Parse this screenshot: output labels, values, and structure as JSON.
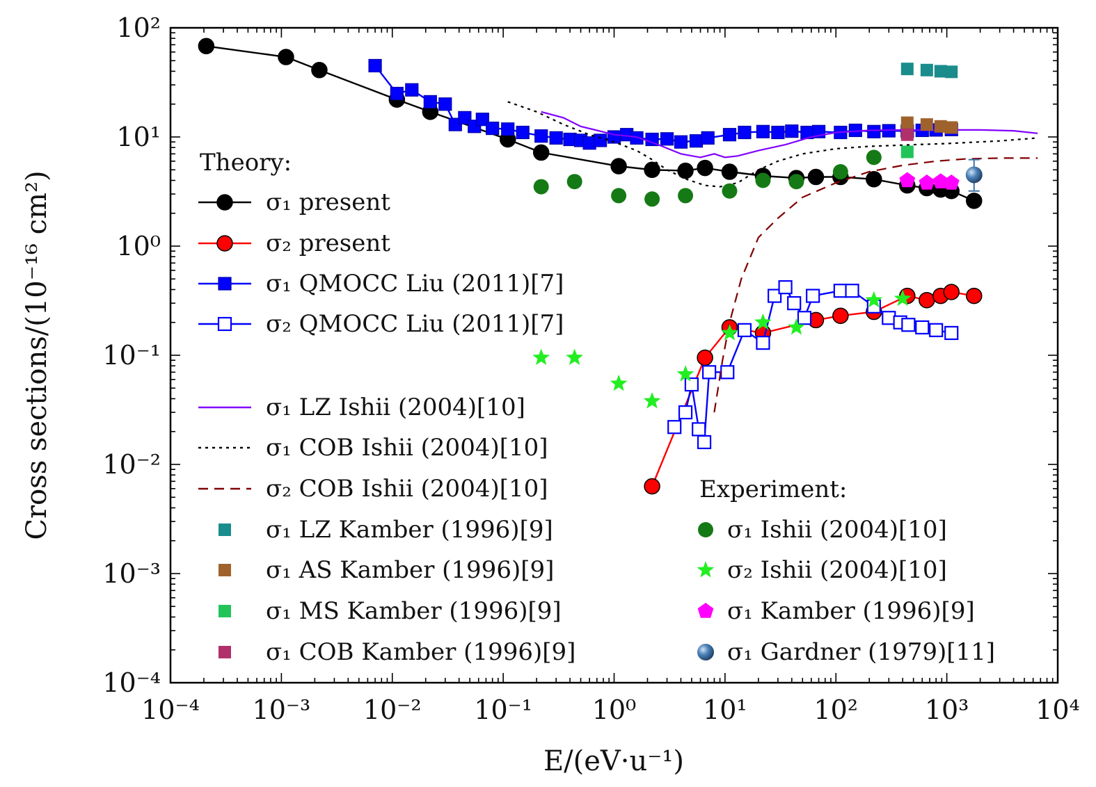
{
  "chart_data": {
    "type": "scatter",
    "xscale": "log",
    "yscale": "log",
    "xlim": [
      0.0001,
      10000
    ],
    "ylim": [
      0.0001,
      100
    ],
    "xlabel": "E/(eV·u⁻¹)",
    "ylabel": "Cross sections/(10⁻¹⁶ cm²)",
    "xticks": [
      {
        "value": 0.0001,
        "label": "10⁻⁴"
      },
      {
        "value": 0.001,
        "label": "10⁻³"
      },
      {
        "value": 0.01,
        "label": "10⁻²"
      },
      {
        "value": 0.1,
        "label": "10⁻¹"
      },
      {
        "value": 1,
        "label": "10⁰"
      },
      {
        "value": 10,
        "label": "10¹"
      },
      {
        "value": 100,
        "label": "10²"
      },
      {
        "value": 1000,
        "label": "10³"
      },
      {
        "value": 10000,
        "label": "10⁴"
      }
    ],
    "yticks": [
      {
        "value": 0.0001,
        "label": "10⁻⁴"
      },
      {
        "value": 0.001,
        "label": "10⁻³"
      },
      {
        "value": 0.01,
        "label": "10⁻²"
      },
      {
        "value": 0.1,
        "label": "10⁻¹"
      },
      {
        "value": 1,
        "label": "10⁰"
      },
      {
        "value": 10,
        "label": "10¹"
      },
      {
        "value": 100,
        "label": "10²"
      }
    ],
    "legend_headers": {
      "theory": "Theory:",
      "experiment": "Experiment:"
    },
    "series": [
      {
        "id": "s1_present",
        "name": "σ₁ present",
        "color": "#000000",
        "marker": "circle",
        "filled": true,
        "line": "solid",
        "x": [
          0.00021,
          0.0011,
          0.0022,
          0.011,
          0.022,
          0.11,
          0.22,
          1.1,
          2.2,
          4.4,
          6.6,
          11,
          22,
          44,
          66,
          110,
          220,
          440,
          660,
          880,
          1100,
          1760
        ],
        "y": [
          68,
          54,
          41,
          22,
          17,
          9.5,
          7.2,
          5.4,
          5.0,
          4.9,
          5.2,
          4.8,
          4.4,
          4.2,
          4.3,
          4.3,
          4.1,
          3.6,
          3.4,
          3.3,
          3.2,
          2.6
        ]
      },
      {
        "id": "s2_present",
        "name": "σ₂ present",
        "color": "#ff0000",
        "marker": "circle",
        "filled": true,
        "line": "solid",
        "x": [
          2.2,
          6.6,
          11,
          22,
          66,
          110,
          220,
          440,
          660,
          880,
          1100,
          1760
        ],
        "y": [
          0.0063,
          0.095,
          0.18,
          0.16,
          0.21,
          0.23,
          0.25,
          0.35,
          0.32,
          0.35,
          0.38,
          0.35
        ]
      },
      {
        "id": "s1_qmocc",
        "name": "σ₁ QMOCC Liu (2011)[7]",
        "color": "#0000ff",
        "marker": "square",
        "filled": true,
        "line": "solid",
        "x": [
          0.007,
          0.011,
          0.015,
          0.022,
          0.03,
          0.037,
          0.045,
          0.055,
          0.065,
          0.08,
          0.11,
          0.15,
          0.22,
          0.3,
          0.4,
          0.5,
          0.6,
          0.75,
          1.0,
          1.3,
          1.6,
          2.2,
          3.0,
          4.0,
          5.5,
          7.0,
          11,
          15,
          22,
          30,
          40,
          55,
          70,
          110,
          150,
          220,
          300,
          440,
          600,
          800,
          1100
        ],
        "y": [
          45,
          25,
          27,
          21,
          20,
          13,
          15,
          12.5,
          14.5,
          12,
          11.8,
          11,
          10.2,
          9.8,
          9.5,
          9.3,
          8.8,
          9.3,
          10,
          10.5,
          9.8,
          9.5,
          9.6,
          9.0,
          9.2,
          9.8,
          10.5,
          11,
          11.2,
          11,
          11.3,
          11,
          11.2,
          11,
          11.5,
          11.2,
          11.4,
          11.3,
          11.5,
          11.6,
          11.7
        ]
      },
      {
        "id": "s2_qmocc",
        "name": "σ₂ QMOCC Liu (2011)[7]",
        "color": "#0000ff",
        "marker": "square",
        "filled": false,
        "line": "solid",
        "x": [
          3.5,
          4.4,
          5.0,
          5.8,
          6.5,
          7.2,
          10.5,
          15,
          22,
          28,
          35,
          42,
          52,
          62,
          110,
          140,
          220,
          300,
          380,
          450,
          600,
          800,
          1100
        ],
        "y": [
          0.022,
          0.03,
          0.054,
          0.021,
          0.016,
          0.07,
          0.07,
          0.17,
          0.13,
          0.35,
          0.42,
          0.3,
          0.22,
          0.35,
          0.39,
          0.39,
          0.28,
          0.22,
          0.2,
          0.19,
          0.18,
          0.17,
          0.16
        ]
      },
      {
        "id": "s1_lz_ishii",
        "name": "σ₁ LZ Ishii (2004)[10]",
        "color": "#8000ff",
        "marker": "none",
        "line": "solid",
        "x": [
          0.22,
          0.35,
          0.5,
          0.7,
          1.0,
          1.6,
          2.5,
          4.0,
          6.0,
          8.0,
          10,
          13,
          20,
          35,
          60,
          100,
          200,
          400,
          700,
          1000,
          2000,
          4000,
          6600
        ],
        "y": [
          17,
          15,
          12.5,
          11.5,
          10.5,
          10,
          8.5,
          7,
          6.5,
          7,
          6.5,
          6.7,
          7.5,
          8.5,
          10,
          11,
          11.5,
          11.6,
          11.5,
          11.6,
          11.6,
          11.4,
          10.8
        ]
      },
      {
        "id": "s1_cob_ishii",
        "name": "σ₁ COB Ishii (2004)[10]",
        "color": "#000000",
        "marker": "none",
        "line": "dotted",
        "x": [
          0.11,
          0.2,
          0.35,
          0.6,
          1.0,
          1.6,
          2.2,
          3.0,
          4.5,
          6.6,
          9.0,
          13,
          20,
          30,
          50,
          100,
          200,
          500,
          1000,
          3000,
          6600
        ],
        "y": [
          21,
          17,
          13,
          10.5,
          9.0,
          7.5,
          6.2,
          5.0,
          4.1,
          3.6,
          3.5,
          3.8,
          5.0,
          6.0,
          7.0,
          7.8,
          8.2,
          8.5,
          8.7,
          9.2,
          9.8
        ]
      },
      {
        "id": "s2_cob_ishii",
        "name": "σ₂ COB Ishii (2004)[10]",
        "color": "#800000",
        "marker": "none",
        "line": "dashed",
        "x": [
          8.0,
          9.5,
          11,
          14,
          20,
          30,
          50,
          100,
          200,
          400,
          800,
          1500,
          3000,
          6600
        ],
        "y": [
          0.03,
          0.09,
          0.2,
          0.5,
          1.2,
          1.8,
          2.8,
          3.8,
          4.8,
          5.5,
          6.0,
          6.3,
          6.4,
          6.4
        ]
      },
      {
        "id": "s1_lz_kamber",
        "name": "σ₁ LZ Kamber (1996)[9]",
        "color": "#1a8c8c",
        "marker": "square",
        "filled": true,
        "line": "none",
        "x": [
          440,
          660,
          880,
          1100
        ],
        "y": [
          42,
          41,
          40,
          39.5
        ]
      },
      {
        "id": "s1_as_kamber",
        "name": "σ₁ AS Kamber (1996)[9]",
        "color": "#a0622d",
        "marker": "square",
        "filled": true,
        "line": "none",
        "x": [
          440,
          660,
          880,
          1100
        ],
        "y": [
          13.5,
          13,
          12.5,
          12.2
        ]
      },
      {
        "id": "s1_ms_kamber",
        "name": "σ₁ MS Kamber (1996)[9]",
        "color": "#22c45a",
        "marker": "square",
        "filled": true,
        "line": "none",
        "x": [
          440
        ],
        "y": [
          7.3
        ]
      },
      {
        "id": "s1_cob_kamber",
        "name": "σ₁ COB Kamber (1996)[9]",
        "color": "#b0306a",
        "marker": "square",
        "filled": true,
        "line": "none",
        "x": [
          440
        ],
        "y": [
          10.5
        ]
      },
      {
        "id": "s1_ishii_exp",
        "name": "σ₁ Ishii (2004)[10]",
        "color": "#157a15",
        "marker": "circle",
        "filled": true,
        "line": "none",
        "x": [
          0.22,
          0.44,
          1.1,
          2.2,
          4.4,
          11,
          22,
          44,
          110,
          220
        ],
        "y": [
          3.5,
          3.9,
          2.9,
          2.7,
          2.9,
          3.2,
          4.0,
          3.9,
          4.8,
          6.5
        ]
      },
      {
        "id": "s2_ishii_exp",
        "name": "σ₂ Ishii (2004)[10]",
        "color": "#22ee22",
        "marker": "star",
        "filled": true,
        "line": "none",
        "x": [
          0.22,
          0.44,
          1.1,
          2.2,
          4.4,
          11,
          22,
          44,
          220,
          400
        ],
        "y": [
          0.095,
          0.095,
          0.055,
          0.038,
          0.067,
          0.16,
          0.2,
          0.18,
          0.32,
          0.33
        ]
      },
      {
        "id": "s1_kamber_exp",
        "name": "σ₁ Kamber (1996)[9]",
        "color": "#ff00ff",
        "marker": "pentagon",
        "filled": true,
        "line": "none",
        "x": [
          440,
          660,
          880,
          1100
        ],
        "y": [
          4.0,
          3.8,
          3.9,
          3.8
        ]
      },
      {
        "id": "s1_gardner_exp",
        "name": "σ₁ Gardner (1979)[11]",
        "color": "#3d72a8",
        "marker": "sphere",
        "filled": true,
        "line": "none",
        "x": [
          1760
        ],
        "y": [
          4.5
        ],
        "yerr_low": [
          3.2
        ],
        "yerr_high": [
          6.2
        ]
      }
    ]
  }
}
